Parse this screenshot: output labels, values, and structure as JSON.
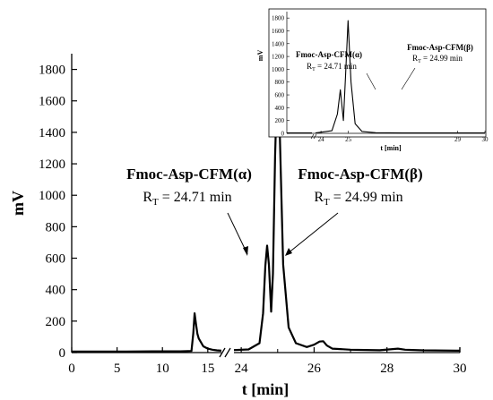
{
  "chart_data": {
    "type": "line",
    "xlabel": "t [min]",
    "ylabel": "mV",
    "ylim": [
      0,
      1900
    ],
    "x_segments": [
      [
        0,
        16.5
      ],
      [
        23.8,
        30
      ]
    ],
    "x_ticks": [
      0,
      5,
      10,
      15,
      24,
      26,
      28,
      30
    ],
    "y_ticks": [
      0,
      200,
      400,
      600,
      800,
      1000,
      1200,
      1400,
      1600,
      1800
    ],
    "grid": false,
    "series": [
      {
        "x": [
          0,
          3,
          6,
          9,
          12,
          13.2,
          13.4,
          13.55,
          13.7,
          13.85,
          14.0,
          14.5,
          15.0,
          15.5,
          16.0,
          16.5,
          23.8,
          24.2,
          24.5,
          24.6,
          24.66,
          24.71,
          24.76,
          24.82,
          24.87,
          24.93,
          24.99,
          25.06,
          25.15,
          25.3,
          25.5,
          25.8,
          26.0,
          26.15,
          26.25,
          26.35,
          26.5,
          27.0,
          27.8,
          28.3,
          28.5,
          29.0,
          30.0
        ],
        "y": [
          6,
          6,
          7,
          8,
          8,
          10,
          120,
          250,
          180,
          120,
          90,
          40,
          25,
          18,
          14,
          12,
          16,
          20,
          60,
          250,
          550,
          680,
          560,
          260,
          500,
          1250,
          1760,
          1380,
          560,
          160,
          60,
          35,
          50,
          70,
          72,
          45,
          25,
          18,
          15,
          25,
          18,
          14,
          12
        ]
      }
    ],
    "annotations": [
      {
        "name": "Fmoc-Asp-CFM(α)",
        "rt_label": "R",
        "rt_sub": "T",
        "rt_value": "= 24.71 min",
        "x": 24.71,
        "y": 680
      },
      {
        "name": "Fmoc-Asp-CFM(β)",
        "rt_label": "R",
        "rt_sub": "T",
        "rt_value": "= 24.99 min",
        "x": 24.99,
        "y": 1760
      }
    ],
    "inset": {
      "xlabel": "t [min]",
      "ylabel": "mV",
      "ylim": [
        0,
        1900
      ],
      "x_segments": [
        [
          0,
          2.5
        ],
        [
          23.8,
          30
        ]
      ],
      "x_ticks": [
        24,
        25,
        29,
        30
      ],
      "y_ticks": [
        0,
        200,
        400,
        600,
        800,
        1000,
        1200,
        1400,
        1600,
        1800
      ],
      "x": [
        0,
        2.5,
        23.8,
        24.4,
        24.6,
        24.71,
        24.82,
        24.9,
        24.99,
        25.1,
        25.25,
        25.5,
        26.0,
        27.0,
        28.0,
        29.0,
        30.0
      ],
      "y": [
        5,
        5,
        5,
        40,
        300,
        680,
        200,
        900,
        1760,
        800,
        150,
        30,
        10,
        5,
        5,
        5,
        5
      ]
    }
  }
}
